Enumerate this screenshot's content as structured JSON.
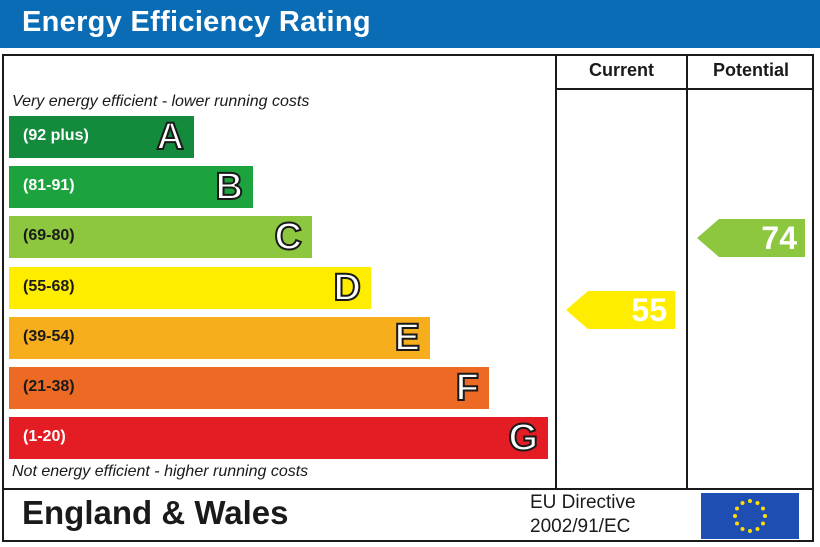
{
  "header": {
    "title": "Energy Efficiency Rating"
  },
  "columns": {
    "current": "Current",
    "potential": "Potential"
  },
  "notes": {
    "top": "Very energy efficient - lower running costs",
    "bottom": "Not energy efficient - higher running costs"
  },
  "chart_data": {
    "type": "bar",
    "title": "Energy Efficiency Rating",
    "bands": [
      {
        "letter": "A",
        "range": "(92 plus)",
        "color": "#138a3c"
      },
      {
        "letter": "B",
        "range": "(81-91)",
        "color": "#1da33d"
      },
      {
        "letter": "C",
        "range": "(69-80)",
        "color": "#8dc63f"
      },
      {
        "letter": "D",
        "range": "(55-68)",
        "color": "#ffed00"
      },
      {
        "letter": "E",
        "range": "(39-54)",
        "color": "#f7ae1c"
      },
      {
        "letter": "F",
        "range": "(21-38)",
        "color": "#ed6a24"
      },
      {
        "letter": "G",
        "range": "(1-20)",
        "color": "#e31d23"
      }
    ],
    "current": {
      "value": "55",
      "band": "D",
      "color": "#ffed00"
    },
    "potential": {
      "value": "74",
      "band": "C",
      "color": "#8dc63f"
    }
  },
  "footer": {
    "region": "England & Wales",
    "directive_line1": "EU Directive",
    "directive_line2": "2002/91/EC"
  },
  "flag": {
    "background": "#1f4eb3",
    "stars": "#ffdd00"
  }
}
